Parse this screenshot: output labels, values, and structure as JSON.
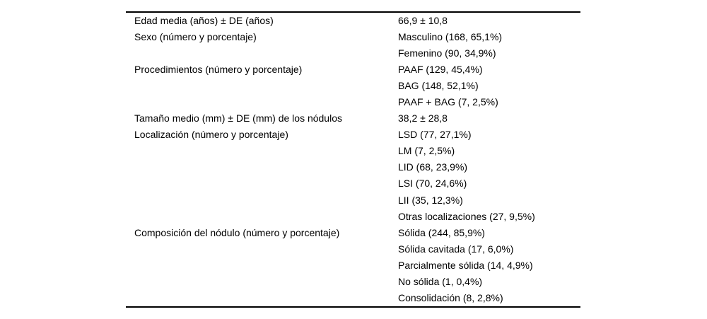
{
  "colors": {
    "background": "#ffffff",
    "text": "#000000",
    "rule": "#000000"
  },
  "table": {
    "name": "patient-and-nodule-characteristics-table",
    "columns": [
      "characteristic",
      "value"
    ],
    "rows": [
      {
        "label": "Edad media (años) ± DE (años)",
        "value": "66,9 ± 10,8"
      },
      {
        "label": "Sexo (número y porcentaje)",
        "value": "Masculino (168, 65,1%)"
      },
      {
        "label": "",
        "value": "Femenino (90, 34,9%)"
      },
      {
        "label": "Procedimientos (número y porcentaje)",
        "value": "PAAF (129, 45,4%)"
      },
      {
        "label": "",
        "value": "BAG (148, 52,1%)"
      },
      {
        "label": "",
        "value": "PAAF + BAG (7, 2,5%)"
      },
      {
        "label": "Tamaño medio (mm) ± DE (mm) de los nódulos",
        "value": "38,2 ± 28,8"
      },
      {
        "label": "Localización (número y porcentaje)",
        "value": "LSD (77, 27,1%)"
      },
      {
        "label": "",
        "value": "LM (7, 2,5%)"
      },
      {
        "label": "",
        "value": "LID (68, 23,9%)"
      },
      {
        "label": "",
        "value": "LSI (70, 24,6%)"
      },
      {
        "label": "",
        "value": "LII (35, 12,3%)"
      },
      {
        "label": "",
        "value": "Otras localizaciones (27, 9,5%)"
      },
      {
        "label": "Composición del nódulo (número y porcentaje)",
        "value": "Sólida (244, 85,9%)"
      },
      {
        "label": "",
        "value": "Sólida cavitada (17, 6,0%)"
      },
      {
        "label": "",
        "value": "Parcialmente sólida (14, 4,9%)"
      },
      {
        "label": "",
        "value": "No sólida (1, 0,4%)"
      },
      {
        "label": "",
        "value": "Consolidación (8, 2,8%)"
      }
    ]
  }
}
